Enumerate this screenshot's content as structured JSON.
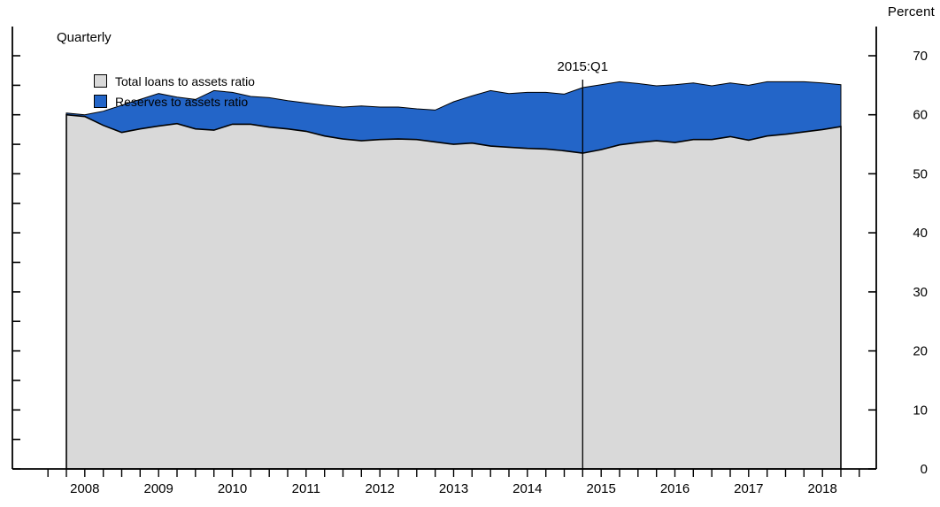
{
  "chart": {
    "y_axis_title": "Percent",
    "frequency_label": "Quarterly",
    "annotation": {
      "label": "2015:Q1",
      "x": 2015.0
    }
  },
  "chart_data": {
    "type": "area",
    "stacked": true,
    "title": "",
    "frequency": "Quarterly",
    "x_unit": "year.quarter",
    "x_start": 2008.0,
    "x_step": 0.25,
    "x_end": 2018.5,
    "ylim": [
      0,
      70
    ],
    "y_ticks": [
      0,
      10,
      20,
      30,
      40,
      50,
      60,
      70
    ],
    "y_minor_tick_step": 5,
    "y_axis_label": "Percent",
    "x_year_labels": [
      2008,
      2009,
      2010,
      2011,
      2012,
      2013,
      2014,
      2015,
      2016,
      2017,
      2018
    ],
    "grid": false,
    "legend_position": "top-left",
    "series": [
      {
        "name": "Total loans to assets ratio",
        "color": "#d9d9d9",
        "outline": "#000000",
        "values": [
          60.0,
          59.7,
          58.2,
          57.0,
          57.6,
          58.1,
          58.5,
          57.6,
          57.4,
          58.4,
          58.4,
          57.9,
          57.6,
          57.2,
          56.4,
          55.9,
          55.6,
          55.8,
          55.9,
          55.8,
          55.4,
          55.0,
          55.2,
          54.7,
          54.5,
          54.3,
          54.2,
          53.9,
          53.5,
          54.1,
          54.9,
          55.3,
          55.6,
          55.3,
          55.8,
          55.8,
          56.3,
          55.7,
          56.4,
          56.7,
          57.1,
          57.5,
          58.0
        ]
      },
      {
        "name": "Reserves to assets ratio",
        "color": "#2365c8",
        "outline": "#000000",
        "values": [
          0.3,
          0.3,
          2.4,
          4.6,
          5.0,
          5.5,
          4.5,
          5.0,
          6.7,
          5.4,
          4.7,
          5.0,
          4.8,
          4.8,
          5.2,
          5.4,
          5.9,
          5.5,
          5.4,
          5.2,
          5.4,
          7.2,
          8.0,
          9.4,
          9.1,
          9.5,
          9.6,
          9.6,
          11.1,
          11.0,
          10.7,
          10.0,
          9.3,
          9.8,
          9.6,
          9.1,
          9.1,
          9.3,
          9.2,
          8.9,
          8.5,
          7.9,
          7.1
        ]
      }
    ],
    "annotation": {
      "label": "2015:Q1",
      "x": 2015.0
    }
  }
}
